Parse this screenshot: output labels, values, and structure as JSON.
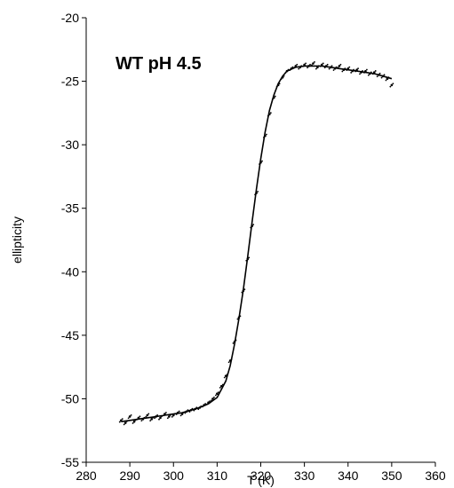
{
  "chart_data": {
    "type": "scatter",
    "title": "",
    "xlabel": "T (K)",
    "ylabel": "ellipticity",
    "xlim": [
      280,
      360
    ],
    "ylim": [
      -55,
      -20
    ],
    "xticks": [
      280,
      290,
      300,
      310,
      320,
      330,
      340,
      350,
      360
    ],
    "yticks": [
      -20,
      -25,
      -30,
      -35,
      -40,
      -45,
      -50,
      -55
    ],
    "grid": false,
    "legend": "none",
    "annotation": "WT pH 4.5",
    "series": [
      {
        "kind": "points",
        "color": "#000000",
        "x": [
          288,
          289,
          290,
          291,
          292,
          293,
          294,
          295,
          296,
          297,
          298,
          299,
          300,
          301,
          302,
          303,
          304,
          305,
          306,
          307,
          308,
          309,
          310,
          311,
          312,
          313,
          314,
          315,
          316,
          317,
          318,
          319,
          320,
          321,
          322,
          323,
          324,
          325,
          326,
          327,
          328,
          329,
          330,
          331,
          332,
          333,
          334,
          335,
          336,
          337,
          338,
          339,
          340,
          341,
          342,
          343,
          344,
          345,
          346,
          347,
          348,
          349,
          350
        ],
        "y": [
          -51.7,
          -51.9,
          -51.4,
          -51.8,
          -51.5,
          -51.6,
          -51.3,
          -51.6,
          -51.4,
          -51.5,
          -51.2,
          -51.4,
          -51.3,
          -51.1,
          -51.2,
          -51.0,
          -50.9,
          -50.8,
          -50.7,
          -50.5,
          -50.3,
          -50.0,
          -49.6,
          -49.0,
          -48.2,
          -47.0,
          -45.5,
          -43.6,
          -41.5,
          -39.0,
          -36.4,
          -33.8,
          -31.4,
          -29.3,
          -27.6,
          -26.3,
          -25.3,
          -24.7,
          -24.2,
          -24.0,
          -23.8,
          -23.9,
          -23.7,
          -23.8,
          -23.6,
          -23.9,
          -23.7,
          -23.8,
          -23.9,
          -24.0,
          -23.8,
          -24.1,
          -24.0,
          -24.2,
          -24.1,
          -24.3,
          -24.2,
          -24.4,
          -24.3,
          -24.5,
          -24.6,
          -24.8,
          -25.3
        ]
      },
      {
        "kind": "fit",
        "color": "#000000",
        "x": [
          288,
          290,
          292,
          294,
          296,
          298,
          300,
          302,
          304,
          306,
          308,
          310,
          312,
          313,
          314,
          315,
          316,
          317,
          318,
          319,
          320,
          321,
          322,
          323,
          324,
          325,
          326,
          328,
          330,
          332,
          334,
          336,
          338,
          340,
          342,
          344,
          346,
          348,
          350
        ],
        "y": [
          -51.8,
          -51.7,
          -51.6,
          -51.5,
          -51.4,
          -51.3,
          -51.2,
          -51.1,
          -50.9,
          -50.7,
          -50.4,
          -49.9,
          -48.6,
          -47.4,
          -45.7,
          -43.7,
          -41.4,
          -38.8,
          -36.1,
          -33.5,
          -31.1,
          -29.0,
          -27.3,
          -26.1,
          -25.2,
          -24.6,
          -24.2,
          -23.9,
          -23.8,
          -23.8,
          -23.8,
          -23.9,
          -24.0,
          -24.1,
          -24.2,
          -24.3,
          -24.4,
          -24.6,
          -24.8
        ]
      }
    ]
  }
}
